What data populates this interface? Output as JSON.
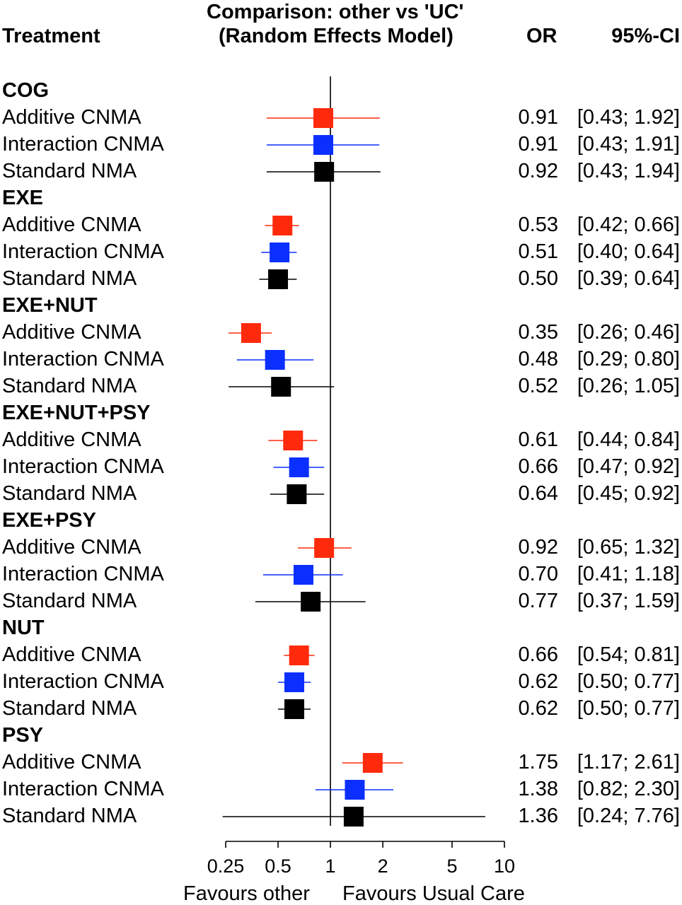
{
  "header": {
    "treatment": "Treatment",
    "title_line1": "Comparison: other vs 'UC'",
    "title_line2": "(Random Effects Model)",
    "or": "OR",
    "ci": "95%-CI"
  },
  "chart_data": {
    "type": "forest",
    "x_scale": "log",
    "xlim": [
      0.25,
      10
    ],
    "reference_line": 1,
    "xticks": [
      "0.25",
      "0.5",
      "1",
      "2",
      "5",
      "10"
    ],
    "xtick_values": [
      0.25,
      0.5,
      1,
      2,
      5,
      10
    ],
    "favours_left": "Favours other",
    "favours_right": "Favours Usual Care",
    "colors": {
      "Additive CNMA": "#ff2a0c",
      "Interaction CNMA": "#0a2fff",
      "Standard NMA": "#000000"
    },
    "groups": [
      {
        "name": "COG",
        "rows": [
          {
            "label": "Additive CNMA",
            "or": 0.91,
            "lo": 0.43,
            "hi": 1.92,
            "or_text": "0.91",
            "ci_text": "[0.43; 1.92]"
          },
          {
            "label": "Interaction CNMA",
            "or": 0.91,
            "lo": 0.43,
            "hi": 1.91,
            "or_text": "0.91",
            "ci_text": "[0.43; 1.91]"
          },
          {
            "label": "Standard NMA",
            "or": 0.92,
            "lo": 0.43,
            "hi": 1.94,
            "or_text": "0.92",
            "ci_text": "[0.43; 1.94]"
          }
        ]
      },
      {
        "name": "EXE",
        "rows": [
          {
            "label": "Additive CNMA",
            "or": 0.53,
            "lo": 0.42,
            "hi": 0.66,
            "or_text": "0.53",
            "ci_text": "[0.42; 0.66]"
          },
          {
            "label": "Interaction CNMA",
            "or": 0.51,
            "lo": 0.4,
            "hi": 0.64,
            "or_text": "0.51",
            "ci_text": "[0.40; 0.64]"
          },
          {
            "label": "Standard NMA",
            "or": 0.5,
            "lo": 0.39,
            "hi": 0.64,
            "or_text": "0.50",
            "ci_text": "[0.39; 0.64]"
          }
        ]
      },
      {
        "name": "EXE+NUT",
        "rows": [
          {
            "label": "Additive CNMA",
            "or": 0.35,
            "lo": 0.26,
            "hi": 0.46,
            "or_text": "0.35",
            "ci_text": "[0.26; 0.46]"
          },
          {
            "label": "Interaction CNMA",
            "or": 0.48,
            "lo": 0.29,
            "hi": 0.8,
            "or_text": "0.48",
            "ci_text": "[0.29; 0.80]"
          },
          {
            "label": "Standard NMA",
            "or": 0.52,
            "lo": 0.26,
            "hi": 1.05,
            "or_text": "0.52",
            "ci_text": "[0.26; 1.05]"
          }
        ]
      },
      {
        "name": "EXE+NUT+PSY",
        "rows": [
          {
            "label": "Additive CNMA",
            "or": 0.61,
            "lo": 0.44,
            "hi": 0.84,
            "or_text": "0.61",
            "ci_text": "[0.44; 0.84]"
          },
          {
            "label": "Interaction CNMA",
            "or": 0.66,
            "lo": 0.47,
            "hi": 0.92,
            "or_text": "0.66",
            "ci_text": "[0.47; 0.92]"
          },
          {
            "label": "Standard NMA",
            "or": 0.64,
            "lo": 0.45,
            "hi": 0.92,
            "or_text": "0.64",
            "ci_text": "[0.45; 0.92]"
          }
        ]
      },
      {
        "name": "EXE+PSY",
        "rows": [
          {
            "label": "Additive CNMA",
            "or": 0.92,
            "lo": 0.65,
            "hi": 1.32,
            "or_text": "0.92",
            "ci_text": "[0.65; 1.32]"
          },
          {
            "label": "Interaction CNMA",
            "or": 0.7,
            "lo": 0.41,
            "hi": 1.18,
            "or_text": "0.70",
            "ci_text": "[0.41; 1.18]"
          },
          {
            "label": "Standard NMA",
            "or": 0.77,
            "lo": 0.37,
            "hi": 1.59,
            "or_text": "0.77",
            "ci_text": "[0.37; 1.59]"
          }
        ]
      },
      {
        "name": "NUT",
        "rows": [
          {
            "label": "Additive CNMA",
            "or": 0.66,
            "lo": 0.54,
            "hi": 0.81,
            "or_text": "0.66",
            "ci_text": "[0.54; 0.81]"
          },
          {
            "label": "Interaction CNMA",
            "or": 0.62,
            "lo": 0.5,
            "hi": 0.77,
            "or_text": "0.62",
            "ci_text": "[0.50; 0.77]"
          },
          {
            "label": "Standard NMA",
            "or": 0.62,
            "lo": 0.5,
            "hi": 0.77,
            "or_text": "0.62",
            "ci_text": "[0.50; 0.77]"
          }
        ]
      },
      {
        "name": "PSY",
        "rows": [
          {
            "label": "Additive CNMA",
            "or": 1.75,
            "lo": 1.17,
            "hi": 2.61,
            "or_text": "1.75",
            "ci_text": "[1.17; 2.61]"
          },
          {
            "label": "Interaction CNMA",
            "or": 1.38,
            "lo": 0.82,
            "hi": 2.3,
            "or_text": "1.38",
            "ci_text": "[0.82; 2.30]"
          },
          {
            "label": "Standard NMA",
            "or": 1.36,
            "lo": 0.24,
            "hi": 7.76,
            "or_text": "1.36",
            "ci_text": "[0.24; 7.76]"
          }
        ]
      }
    ]
  }
}
